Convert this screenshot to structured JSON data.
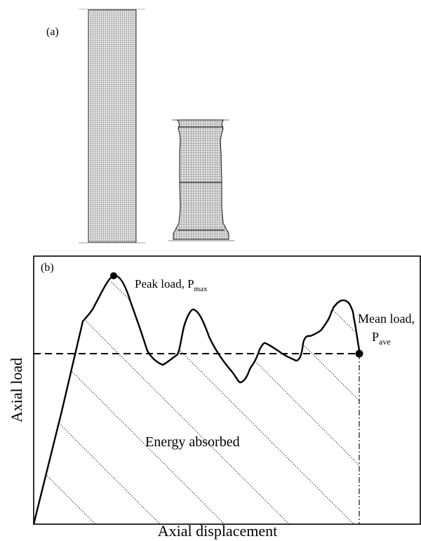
{
  "panel_a": {
    "label": "(a)"
  },
  "panel_b": {
    "label": "(b)",
    "x_axis_label": "Axial displacement",
    "y_axis_label": "Axial load",
    "peak_label": {
      "text": "Peak load, P",
      "subscript": "max"
    },
    "mean_label": {
      "line1": "Mean load,",
      "line2_text": "P",
      "line2_subscript": "ave"
    },
    "area_label": "Energy absorbed"
  }
}
